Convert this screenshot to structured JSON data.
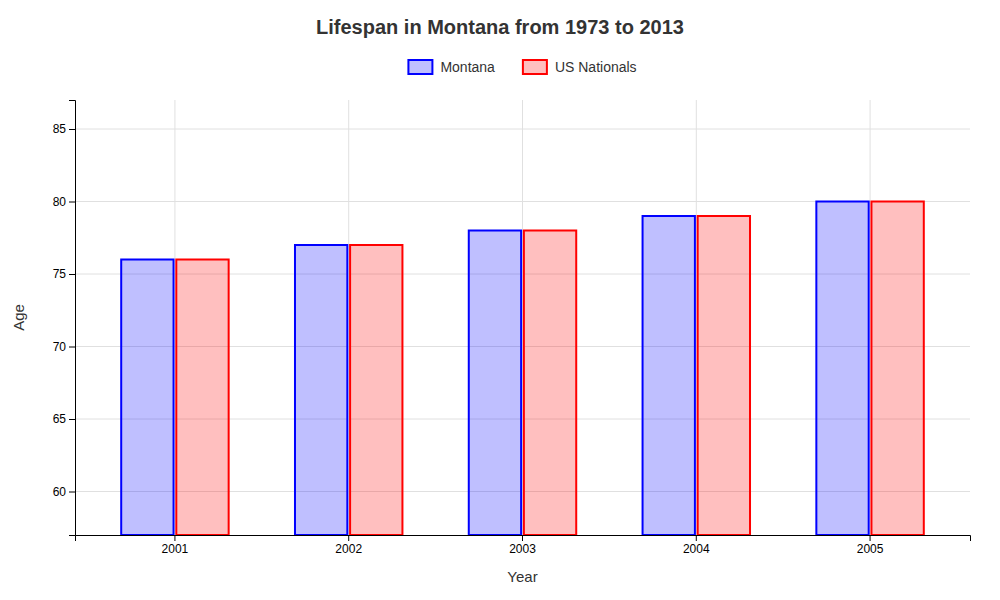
{
  "chart_data": {
    "type": "bar",
    "title": "Lifespan in Montana from 1973 to 2013",
    "x_label": "Year",
    "y_label": "Age",
    "categories": [
      "2001",
      "2002",
      "2003",
      "2004",
      "2005"
    ],
    "series": [
      {
        "name": "Montana",
        "color": "#0000ff",
        "values": [
          76,
          77,
          78,
          79,
          80
        ]
      },
      {
        "name": "US Nationals",
        "color": "#ff0000",
        "values": [
          76,
          77,
          78,
          79,
          80
        ]
      }
    ],
    "ylim": [
      57,
      87
    ],
    "yticks": [
      60,
      65,
      70,
      75,
      80,
      85
    ],
    "grid": true,
    "legend": "top"
  }
}
